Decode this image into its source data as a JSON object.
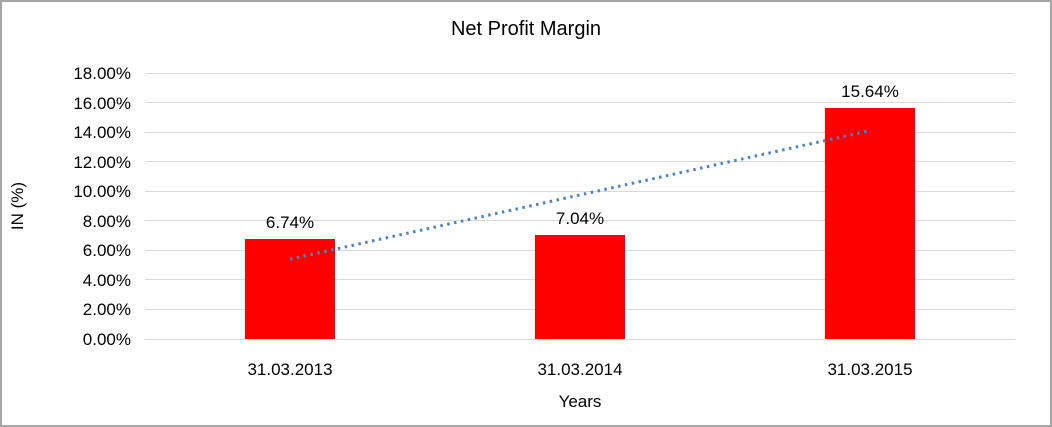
{
  "chart_data": {
    "type": "bar",
    "title": "Net Profit Margin",
    "xlabel": "Years",
    "ylabel": "IN (%)",
    "categories": [
      "31.03.2013",
      "31.03.2014",
      "31.03.2015"
    ],
    "values": [
      6.74,
      7.04,
      15.64
    ],
    "data_labels": [
      "6.74%",
      "7.04%",
      "15.64%"
    ],
    "y_ticks": [
      "0.00%",
      "2.00%",
      "4.00%",
      "6.00%",
      "8.00%",
      "10.00%",
      "12.00%",
      "14.00%",
      "16.00%",
      "18.00%"
    ],
    "y_tick_values": [
      0,
      2,
      4,
      6,
      8,
      10,
      12,
      14,
      16,
      18
    ],
    "ylim": [
      0,
      18
    ],
    "grid": "horizontal",
    "legend": "none",
    "bar_color": "#FF0000",
    "gridline_color": "#D9D9D9",
    "trendline": {
      "style": "dotted",
      "color": "#4F81BD",
      "start": {
        "category_index": 0,
        "value": 5.4
      },
      "end": {
        "category_index": 2,
        "value": 14.1
      }
    }
  }
}
